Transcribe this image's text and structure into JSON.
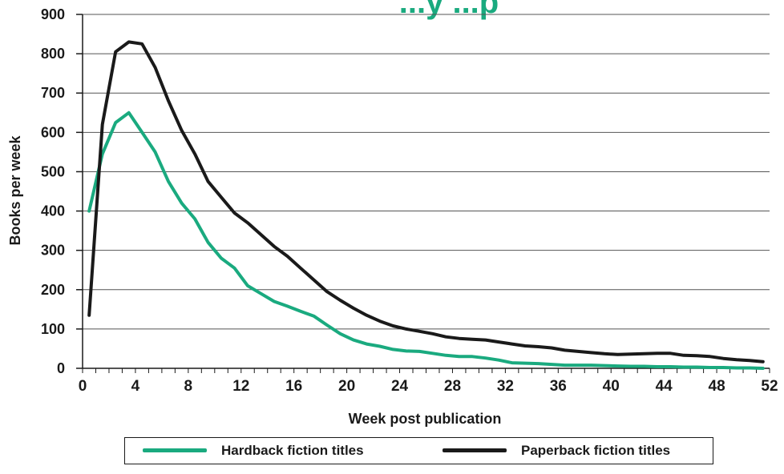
{
  "chart_data": {
    "type": "line",
    "title": "...y ...p",
    "xlabel": "Week post publication",
    "ylabel": "Books per week",
    "xlim": [
      0,
      52
    ],
    "ylim": [
      0,
      900
    ],
    "x_ticks": [
      "0",
      "4",
      "8",
      "12",
      "16",
      "20",
      "24",
      "28",
      "32",
      "36",
      "40",
      "44",
      "48",
      "52"
    ],
    "y_ticks": [
      "0",
      "100",
      "200",
      "300",
      "400",
      "500",
      "600",
      "700",
      "800",
      "900"
    ],
    "grid": "horizontal",
    "legend_position": "bottom",
    "x": [
      0.5,
      1.5,
      2.5,
      3.5,
      4.5,
      5.5,
      6.5,
      7.5,
      8.5,
      9.5,
      10.5,
      11.5,
      12.5,
      13.5,
      14.5,
      15.5,
      16.5,
      17.5,
      18.5,
      19.5,
      20.5,
      21.5,
      22.5,
      23.5,
      24.5,
      25.5,
      26.5,
      27.5,
      28.5,
      29.5,
      30.5,
      31.5,
      32.5,
      33.5,
      34.5,
      35.5,
      36.5,
      37.5,
      38.5,
      39.5,
      40.5,
      41.5,
      42.5,
      43.5,
      44.5,
      45.5,
      46.5,
      47.5,
      48.5,
      49.5,
      50.5,
      51.5
    ],
    "series": [
      {
        "name": "Hardback fiction titles",
        "color": "#1aaa7f",
        "values": [
          400,
          545,
          625,
          650,
          600,
          550,
          475,
          420,
          380,
          320,
          280,
          255,
          210,
          190,
          170,
          158,
          145,
          133,
          110,
          88,
          72,
          62,
          56,
          48,
          44,
          43,
          38,
          33,
          30,
          30,
          26,
          21,
          14,
          13,
          12,
          10,
          8,
          8,
          8,
          7,
          6,
          5,
          5,
          4,
          4,
          3,
          3,
          2,
          2,
          1,
          1,
          0
        ]
      },
      {
        "name": "Paperback fiction titles",
        "color": "#1a1a1a",
        "values": [
          135,
          620,
          805,
          830,
          825,
          765,
          680,
          605,
          545,
          475,
          435,
          395,
          370,
          340,
          310,
          285,
          255,
          225,
          195,
          173,
          153,
          135,
          120,
          108,
          100,
          94,
          88,
          80,
          76,
          74,
          72,
          67,
          62,
          57,
          55,
          52,
          46,
          43,
          40,
          37,
          35,
          36,
          37,
          38,
          38,
          33,
          32,
          30,
          25,
          22,
          20,
          17
        ]
      }
    ]
  }
}
